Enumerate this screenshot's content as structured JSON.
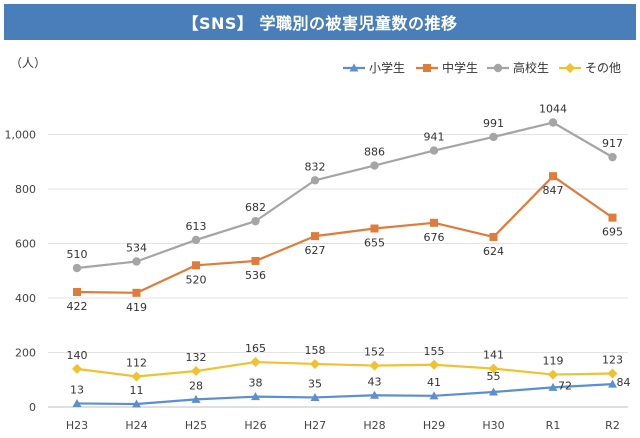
{
  "chart_data": {
    "type": "line",
    "title": "【SNS】 学職別の被害児童数の推移",
    "ylabel": "（人）",
    "xlabel": "",
    "categories": [
      "H23",
      "H24",
      "H25",
      "H26",
      "H27",
      "H28",
      "H29",
      "H30",
      "R1",
      "R2"
    ],
    "ylim": [
      0,
      1200
    ],
    "yticks": [
      0,
      200,
      400,
      600,
      800,
      1000
    ],
    "ytick_labels": [
      "0",
      "200",
      "400",
      "600",
      "800",
      "1,000"
    ],
    "grid": true,
    "legend": "top-right",
    "series": [
      {
        "name": "小学生",
        "color": "#5b8fd0",
        "marker": "triangle",
        "values": [
          13,
          11,
          28,
          38,
          35,
          43,
          41,
          55,
          72,
          84
        ],
        "label_pos": "above"
      },
      {
        "name": "中学生",
        "color": "#e07b39",
        "marker": "square",
        "values": [
          422,
          419,
          520,
          536,
          627,
          655,
          676,
          624,
          847,
          695
        ],
        "label_pos": "below"
      },
      {
        "name": "高校生",
        "color": "#a5a5a5",
        "marker": "circle",
        "values": [
          510,
          534,
          613,
          682,
          832,
          886,
          941,
          991,
          1044,
          917
        ],
        "label_pos": "above"
      },
      {
        "name": "その他",
        "color": "#f2c12e",
        "marker": "diamond",
        "values": [
          140,
          112,
          132,
          165,
          158,
          152,
          155,
          141,
          119,
          123
        ],
        "label_pos": "above"
      }
    ]
  }
}
